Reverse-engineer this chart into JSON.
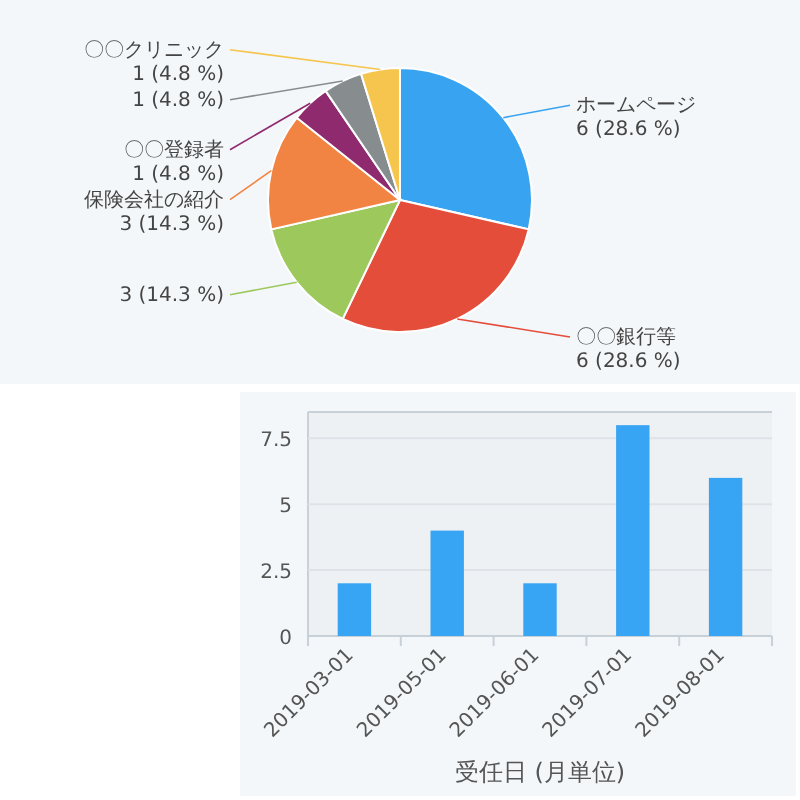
{
  "chart_data": [
    {
      "type": "pie",
      "categories": [
        "ホームページ",
        "〇〇銀行等",
        null,
        "保険会社の紹介",
        "〇〇登録者",
        null,
        "〇〇クリニック"
      ],
      "values": [
        6,
        6,
        3,
        3,
        1,
        1,
        1
      ],
      "colors": [
        "#38a3f1",
        "#e44d3a",
        "#9cc85c",
        "#f28443",
        "#8f2a6e",
        "#878d8f",
        "#f6c54e"
      ],
      "value_labels": [
        "6 (28.6 %)",
        "6 (28.6 %)",
        "3 (14.3 %)",
        "3 (14.3 %)",
        "1 (4.8 %)",
        "1 (4.8 %)",
        "1 (4.8 %)"
      ]
    },
    {
      "type": "bar",
      "categories": [
        "2019-03-01",
        "2019-05-01",
        "2019-06-01",
        "2019-07-01",
        "2019-08-01"
      ],
      "values": [
        2,
        4,
        2,
        8,
        6
      ],
      "color": "#38a4f4",
      "ylim": [
        0,
        8.5
      ],
      "yticks": [
        0,
        2.5,
        5,
        7.5
      ],
      "grid": "y",
      "xlabel": "受任日 (月単位)"
    }
  ]
}
